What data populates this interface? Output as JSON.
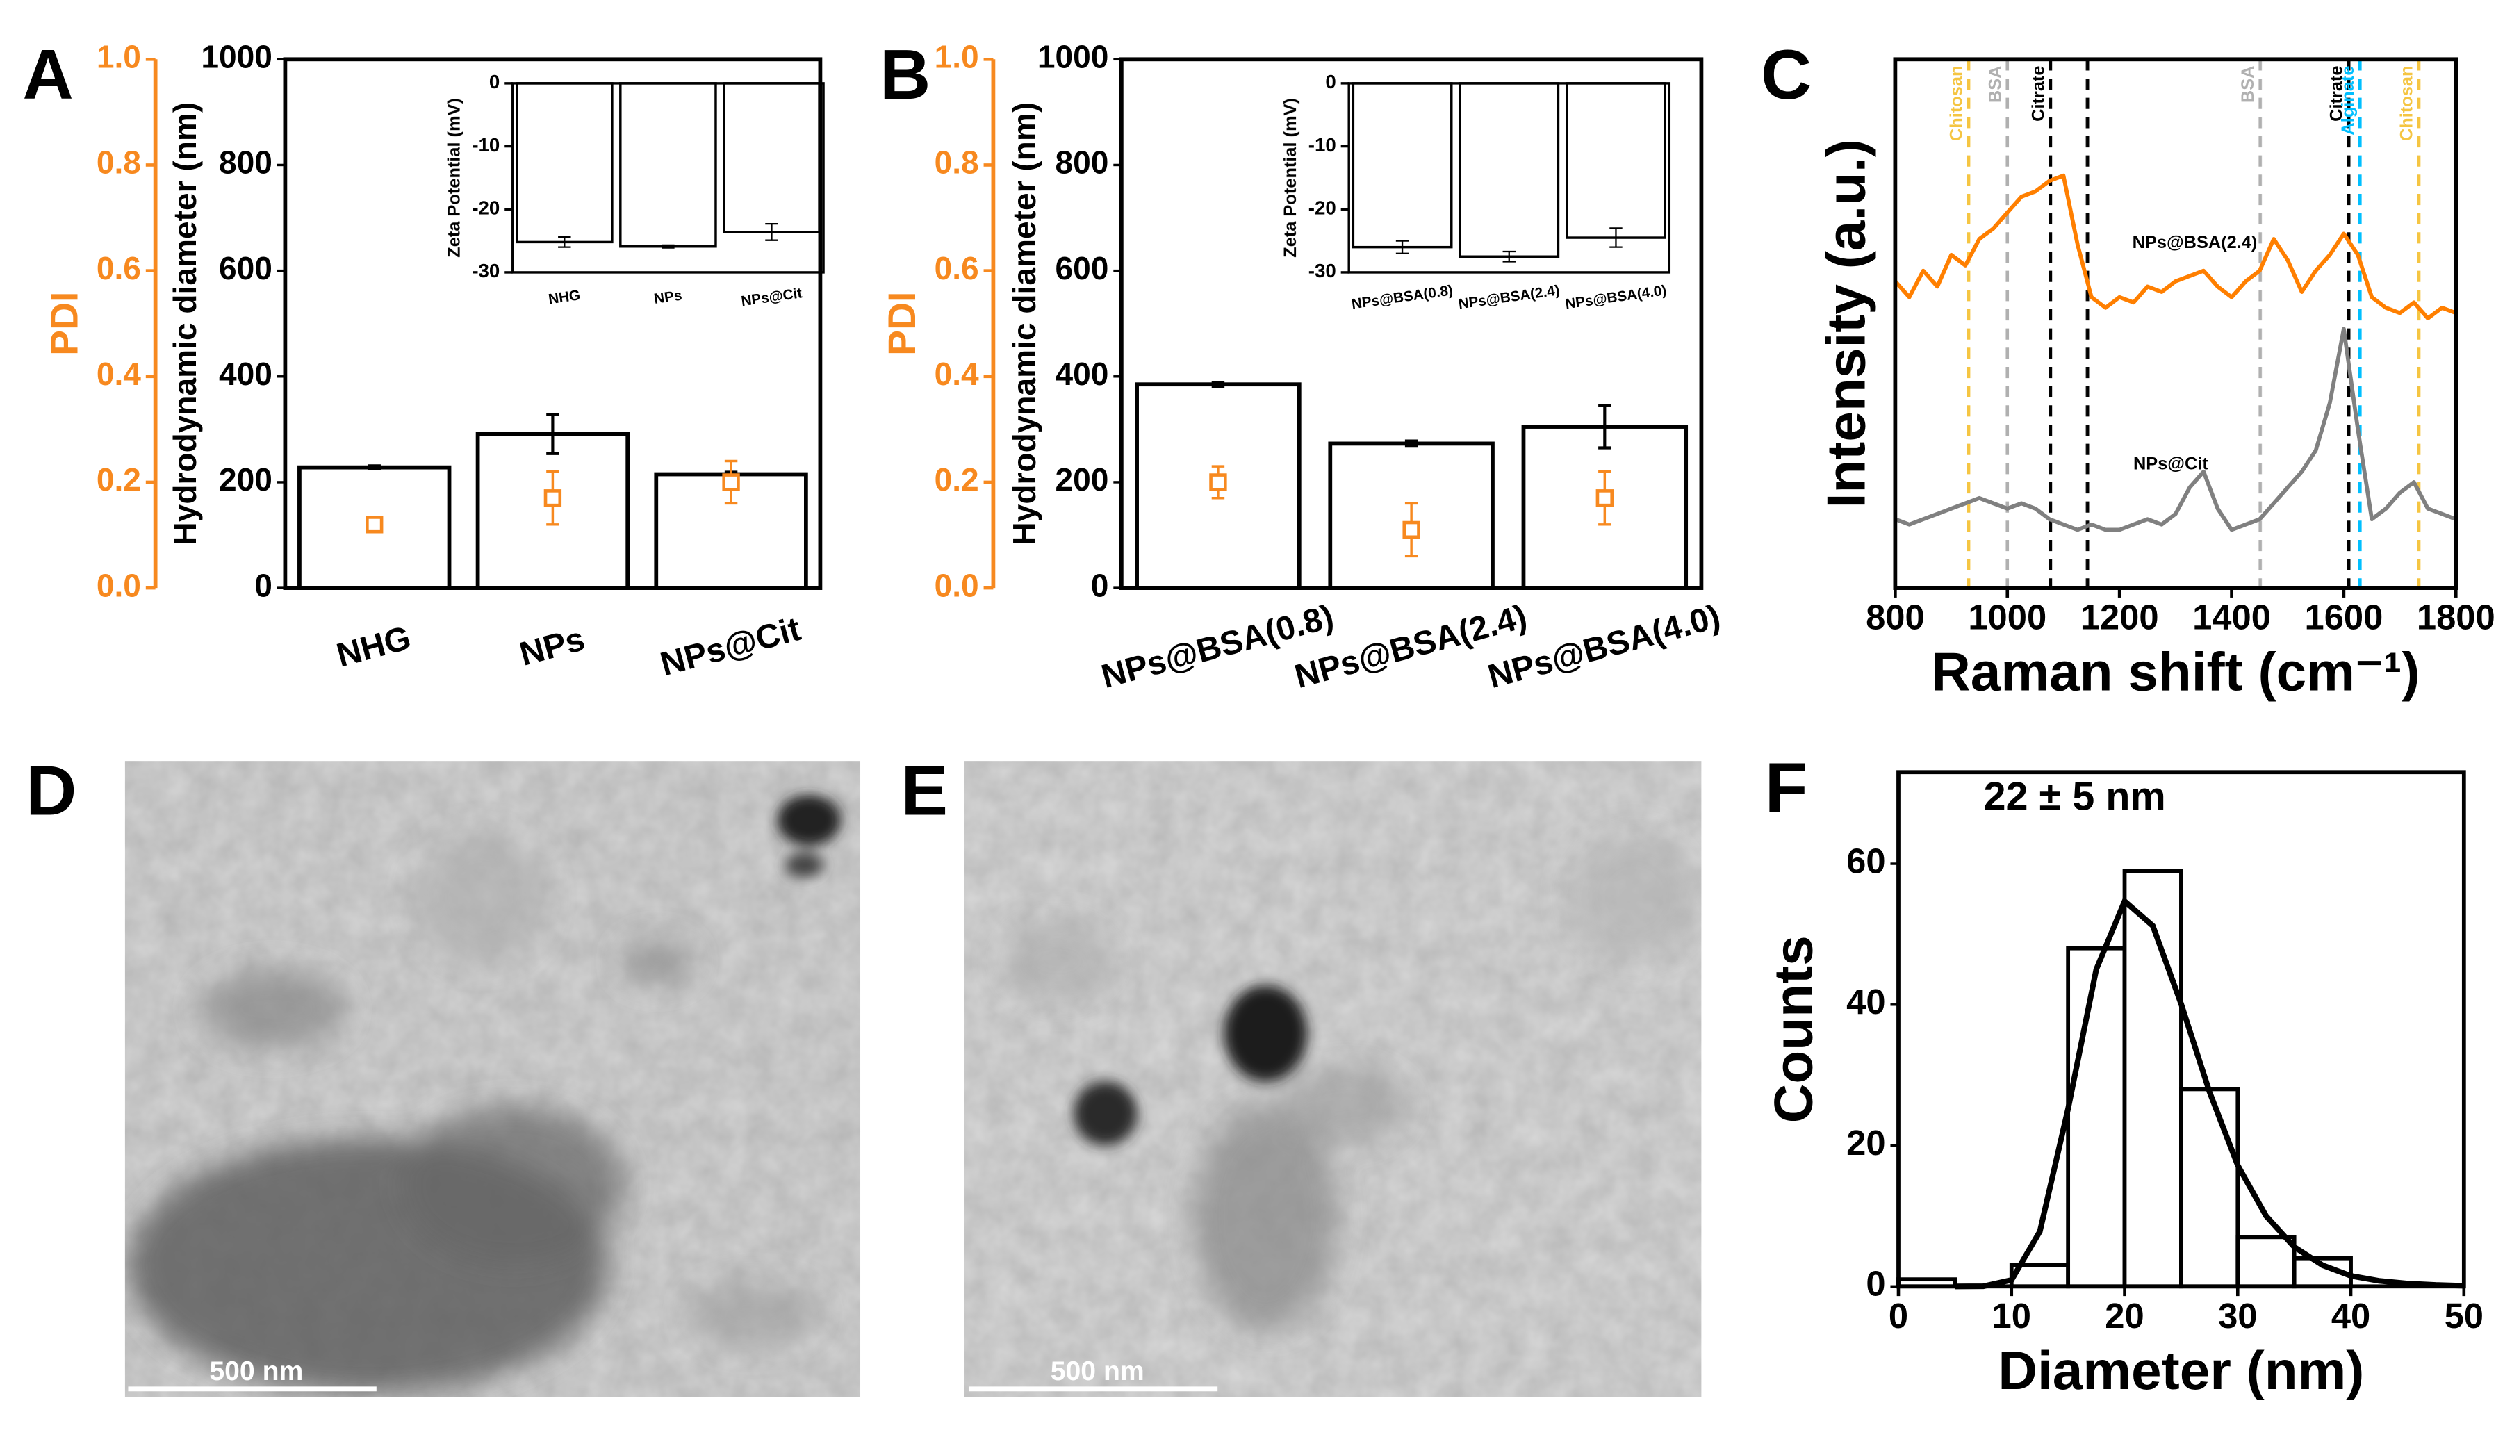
{
  "chart_data": [
    {
      "type": "bar",
      "panel": "A",
      "categories": [
        "NHG",
        "NPs",
        "NPs@Cit"
      ],
      "ylabel": "Hydrodynamic diameter (nm)",
      "y2label": "PDI",
      "ylim": [
        0,
        1000
      ],
      "yticks": [
        0,
        200,
        400,
        600,
        800,
        1000
      ],
      "y2lim": [
        0,
        1
      ],
      "y2ticks": [
        {
          "value": 0,
          "label": "0.0"
        },
        0.2,
        0.4,
        0.6,
        0.8,
        {
          "value": 1,
          "label": "1.0"
        }
      ],
      "series": [
        {
          "values": [
            228,
            291,
            215
          ],
          "errors": [
            3,
            37,
            4
          ],
          "color": "#000000"
        },
        {
          "axis": "y2",
          "values": [
            0.12,
            0.17,
            0.2
          ],
          "errors": [
            0.01,
            0.05,
            0.04
          ],
          "color": "#f7891f"
        }
      ]
    },
    {
      "type": "bar",
      "categories": [
        "NHG",
        "NPs",
        "NPs@Cit"
      ],
      "ylabel": "Zeta Potential (mV)",
      "ylim": [
        -30,
        0
      ],
      "yticks": [
        -30,
        -20,
        -10,
        0
      ],
      "series": [
        {
          "values": [
            -25.2,
            -25.9,
            -23.6
          ],
          "errors": [
            0.8,
            0.2,
            1.3
          ],
          "color": "#000000"
        }
      ]
    },
    {
      "type": "bar",
      "panel": "B",
      "categories": [
        "NPs@BSA(0.8)",
        "NPs@BSA(2.4)",
        "NPs@BSA(4.0)"
      ],
      "ylabel": "Hydrodynamic diameter (nm)",
      "y2label": "PDI",
      "ylim": [
        0,
        1000
      ],
      "yticks": [
        0,
        200,
        400,
        600,
        800,
        1000
      ],
      "y2lim": [
        0,
        1
      ],
      "y2ticks": [
        {
          "value": 0,
          "label": "0.0"
        },
        0.2,
        0.4,
        0.6,
        0.8,
        {
          "value": 1,
          "label": "1.0"
        }
      ],
      "series": [
        {
          "values": [
            385,
            273,
            305
          ],
          "errors": [
            4,
            5,
            40
          ],
          "color": "#000000"
        },
        {
          "axis": "y2",
          "values": [
            0.2,
            0.11,
            0.17
          ],
          "errors": [
            0.03,
            0.05,
            0.05
          ],
          "color": "#f7891f"
        }
      ]
    },
    {
      "type": "bar",
      "categories": [
        "NPs@BSA(0.8)",
        "NPs@BSA(2.4)",
        "NPs@BSA(4.0)"
      ],
      "ylabel": "Zeta Potential (mV)",
      "ylim": [
        -30,
        0
      ],
      "yticks": [
        -30,
        -20,
        -10,
        0
      ],
      "series": [
        {
          "values": [
            -26,
            -27.5,
            -24.5
          ],
          "errors": [
            1,
            0.8,
            1.5
          ],
          "color": "#000000"
        }
      ]
    },
    {
      "type": "line",
      "panel": "C",
      "xlabel": "Raman shift (cm⁻¹)",
      "ylabel": "Intensity (a.u.)",
      "xlim": [
        800,
        1800
      ],
      "xticks": [
        800,
        1000,
        1200,
        1400,
        1600,
        1800
      ],
      "ylim": [
        0,
        100
      ],
      "x": [
        800,
        825,
        850,
        875,
        900,
        925,
        950,
        975,
        1000,
        1025,
        1050,
        1075,
        1100,
        1125,
        1150,
        1175,
        1200,
        1225,
        1250,
        1275,
        1300,
        1325,
        1350,
        1375,
        1400,
        1425,
        1450,
        1475,
        1500,
        1525,
        1550,
        1575,
        1600,
        1625,
        1650,
        1675,
        1700,
        1725,
        1750,
        1775,
        1800
      ],
      "series": [
        {
          "name": "NPs@BSA(2.4)",
          "color": "#ff7f00",
          "values": [
            58,
            55,
            60,
            57,
            63,
            61,
            66,
            68,
            71,
            74,
            75,
            77,
            78,
            65,
            55,
            53,
            55,
            54,
            57,
            56,
            58,
            59,
            60,
            57,
            55,
            58,
            60,
            66,
            62,
            56,
            60,
            63,
            67,
            63,
            55,
            53,
            52,
            54,
            51,
            53,
            52
          ]
        },
        {
          "name": "NPs@Cit",
          "color": "#808080",
          "values": [
            13,
            12,
            13,
            14,
            15,
            16,
            17,
            16,
            15,
            16,
            15,
            13,
            12,
            11,
            12,
            11,
            11,
            12,
            13,
            12,
            14,
            19,
            22,
            15,
            11,
            12,
            13,
            16,
            19,
            22,
            26,
            35,
            49,
            30,
            13,
            15,
            18,
            20,
            15,
            14,
            13
          ]
        }
      ],
      "reference_lines": [
        {
          "x": 931,
          "label": "Chitosan",
          "color": "#f5c542"
        },
        {
          "x": 1000,
          "label": "BSA",
          "color": "#b0b0b0"
        },
        {
          "x": 1077,
          "label": "Citrate",
          "color": "#000000"
        },
        {
          "x": 1143,
          "color": "#000000"
        },
        {
          "x": 1451,
          "label": "BSA",
          "color": "#b0b0b0"
        },
        {
          "x": 1609,
          "label": "Citrate",
          "color": "#000000"
        },
        {
          "x": 1629,
          "label": "Alginate",
          "color": "#00bfff"
        },
        {
          "x": 1734,
          "label": "Chitosan",
          "color": "#f5c542"
        }
      ]
    },
    {
      "type": "histogram",
      "panel": "F",
      "xlabel": "Diameter (nm)",
      "ylabel": "Counts",
      "annotation": "22 ± 5 nm",
      "bins": [
        0,
        5,
        10,
        15,
        20,
        25,
        30,
        35,
        40,
        45,
        50
      ],
      "values": [
        1,
        0,
        3,
        48,
        59,
        28,
        7,
        4,
        0,
        0
      ],
      "xlim": [
        0,
        50
      ],
      "xticks": [
        0,
        10,
        20,
        30,
        40,
        50
      ],
      "ylim": [
        0,
        73
      ],
      "yticks": [
        0,
        20,
        40,
        60
      ],
      "fit": {
        "x": [
          5,
          7.5,
          10,
          12.5,
          15,
          17.5,
          20,
          22.5,
          25,
          27.5,
          30,
          32.5,
          35,
          37.5,
          40,
          42.5,
          45,
          47.5,
          50
        ],
        "values": [
          0,
          0.02,
          0.9,
          7.8,
          25.2,
          45,
          54.7,
          51.2,
          40.1,
          27.6,
          17.2,
          10,
          5.6,
          3,
          1.5,
          0.8,
          0.4,
          0.2,
          0.1
        ]
      }
    }
  ],
  "images": [
    {
      "panel": "D",
      "scale_bar": "500 nm"
    },
    {
      "panel": "E",
      "scale_bar": "500 nm"
    }
  ]
}
